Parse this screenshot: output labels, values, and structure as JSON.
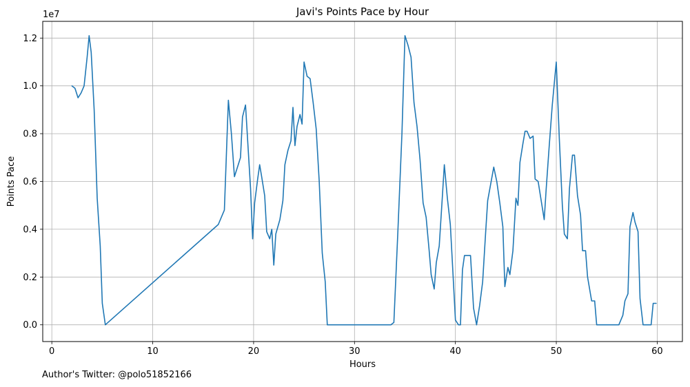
{
  "chart_data": {
    "type": "line",
    "title": "Javi's Points Pace by Hour",
    "xlabel": "Hours",
    "ylabel": "Points Pace",
    "offset_label": "1e7",
    "xlim": [
      -0.9,
      62.5
    ],
    "ylim": [
      -0.07,
      1.27
    ],
    "x_ticks": [
      0,
      10,
      20,
      30,
      40,
      50,
      60
    ],
    "y_ticks": [
      0.0,
      0.2,
      0.4,
      0.6,
      0.8,
      1.0,
      1.2
    ],
    "grid": true,
    "line_color": "#1f77b4",
    "series": [
      {
        "points": [
          [
            2.0,
            1.0
          ],
          [
            2.3,
            0.99
          ],
          [
            2.6,
            0.95
          ],
          [
            2.9,
            0.97
          ],
          [
            3.2,
            1.0
          ],
          [
            3.5,
            1.12
          ],
          [
            3.7,
            1.21
          ],
          [
            3.9,
            1.14
          ],
          [
            4.2,
            0.9
          ],
          [
            4.5,
            0.53
          ],
          [
            4.8,
            0.33
          ],
          [
            5.0,
            0.09
          ],
          [
            5.3,
            0.0
          ],
          [
            16.5,
            0.42
          ],
          [
            17.1,
            0.48
          ],
          [
            17.5,
            0.94
          ],
          [
            17.8,
            0.8
          ],
          [
            18.1,
            0.62
          ],
          [
            18.4,
            0.66
          ],
          [
            18.7,
            0.7
          ],
          [
            18.9,
            0.87
          ],
          [
            19.2,
            0.92
          ],
          [
            19.4,
            0.78
          ],
          [
            19.7,
            0.57
          ],
          [
            19.9,
            0.36
          ],
          [
            20.1,
            0.51
          ],
          [
            20.4,
            0.61
          ],
          [
            20.6,
            0.67
          ],
          [
            20.8,
            0.62
          ],
          [
            21.1,
            0.54
          ],
          [
            21.3,
            0.39
          ],
          [
            21.6,
            0.36
          ],
          [
            21.8,
            0.4
          ],
          [
            22.0,
            0.25
          ],
          [
            22.2,
            0.38
          ],
          [
            22.6,
            0.44
          ],
          [
            22.9,
            0.52
          ],
          [
            23.1,
            0.67
          ],
          [
            23.4,
            0.73
          ],
          [
            23.7,
            0.77
          ],
          [
            23.9,
            0.91
          ],
          [
            24.1,
            0.75
          ],
          [
            24.3,
            0.83
          ],
          [
            24.6,
            0.88
          ],
          [
            24.8,
            0.84
          ],
          [
            25.0,
            1.1
          ],
          [
            25.3,
            1.04
          ],
          [
            25.6,
            1.03
          ],
          [
            25.9,
            0.93
          ],
          [
            26.2,
            0.82
          ],
          [
            26.5,
            0.6
          ],
          [
            26.8,
            0.3
          ],
          [
            27.1,
            0.18
          ],
          [
            27.3,
            0.0
          ],
          [
            33.6,
            0.0
          ],
          [
            33.9,
            0.01
          ],
          [
            34.3,
            0.39
          ],
          [
            34.7,
            0.8
          ],
          [
            35.0,
            1.21
          ],
          [
            35.3,
            1.17
          ],
          [
            35.6,
            1.12
          ],
          [
            35.9,
            0.93
          ],
          [
            36.2,
            0.83
          ],
          [
            36.5,
            0.69
          ],
          [
            36.8,
            0.51
          ],
          [
            37.1,
            0.45
          ],
          [
            37.4,
            0.31
          ],
          [
            37.6,
            0.21
          ],
          [
            37.9,
            0.15
          ],
          [
            38.1,
            0.26
          ],
          [
            38.4,
            0.33
          ],
          [
            38.7,
            0.53
          ],
          [
            38.9,
            0.67
          ],
          [
            39.2,
            0.53
          ],
          [
            39.5,
            0.42
          ],
          [
            39.7,
            0.26
          ],
          [
            40.0,
            0.02
          ],
          [
            40.3,
            0.0
          ],
          [
            40.5,
            0.0
          ],
          [
            40.7,
            0.23
          ],
          [
            40.9,
            0.29
          ],
          [
            41.2,
            0.29
          ],
          [
            41.5,
            0.29
          ],
          [
            41.8,
            0.07
          ],
          [
            42.1,
            0.0
          ],
          [
            42.4,
            0.08
          ],
          [
            42.7,
            0.18
          ],
          [
            43.0,
            0.39
          ],
          [
            43.2,
            0.52
          ],
          [
            43.5,
            0.59
          ],
          [
            43.8,
            0.66
          ],
          [
            44.1,
            0.6
          ],
          [
            44.4,
            0.51
          ],
          [
            44.7,
            0.41
          ],
          [
            44.9,
            0.16
          ],
          [
            45.2,
            0.24
          ],
          [
            45.4,
            0.21
          ],
          [
            45.7,
            0.31
          ],
          [
            46.0,
            0.53
          ],
          [
            46.2,
            0.5
          ],
          [
            46.4,
            0.68
          ],
          [
            46.7,
            0.76
          ],
          [
            46.9,
            0.81
          ],
          [
            47.1,
            0.81
          ],
          [
            47.4,
            0.78
          ],
          [
            47.7,
            0.79
          ],
          [
            47.9,
            0.61
          ],
          [
            48.2,
            0.6
          ],
          [
            48.5,
            0.52
          ],
          [
            48.8,
            0.44
          ],
          [
            49.0,
            0.57
          ],
          [
            49.3,
            0.75
          ],
          [
            49.6,
            0.92
          ],
          [
            49.8,
            1.01
          ],
          [
            50.0,
            1.1
          ],
          [
            50.3,
            0.78
          ],
          [
            50.6,
            0.5
          ],
          [
            50.8,
            0.38
          ],
          [
            51.1,
            0.36
          ],
          [
            51.3,
            0.57
          ],
          [
            51.6,
            0.71
          ],
          [
            51.8,
            0.71
          ],
          [
            52.1,
            0.54
          ],
          [
            52.4,
            0.46
          ],
          [
            52.6,
            0.31
          ],
          [
            52.9,
            0.31
          ],
          [
            53.1,
            0.2
          ],
          [
            53.5,
            0.1
          ],
          [
            53.8,
            0.1
          ],
          [
            54.0,
            0.0
          ],
          [
            56.0,
            0.0
          ],
          [
            56.2,
            0.0
          ],
          [
            56.6,
            0.04
          ],
          [
            56.8,
            0.1
          ],
          [
            57.1,
            0.13
          ],
          [
            57.3,
            0.41
          ],
          [
            57.6,
            0.47
          ],
          [
            57.8,
            0.43
          ],
          [
            58.1,
            0.39
          ],
          [
            58.3,
            0.11
          ],
          [
            58.6,
            0.0
          ],
          [
            59.1,
            0.0
          ],
          [
            59.4,
            0.0
          ],
          [
            59.6,
            0.09
          ],
          [
            59.9,
            0.09
          ]
        ]
      }
    ]
  },
  "footer": {
    "author_text": "Author's Twitter: @polo51852166"
  }
}
